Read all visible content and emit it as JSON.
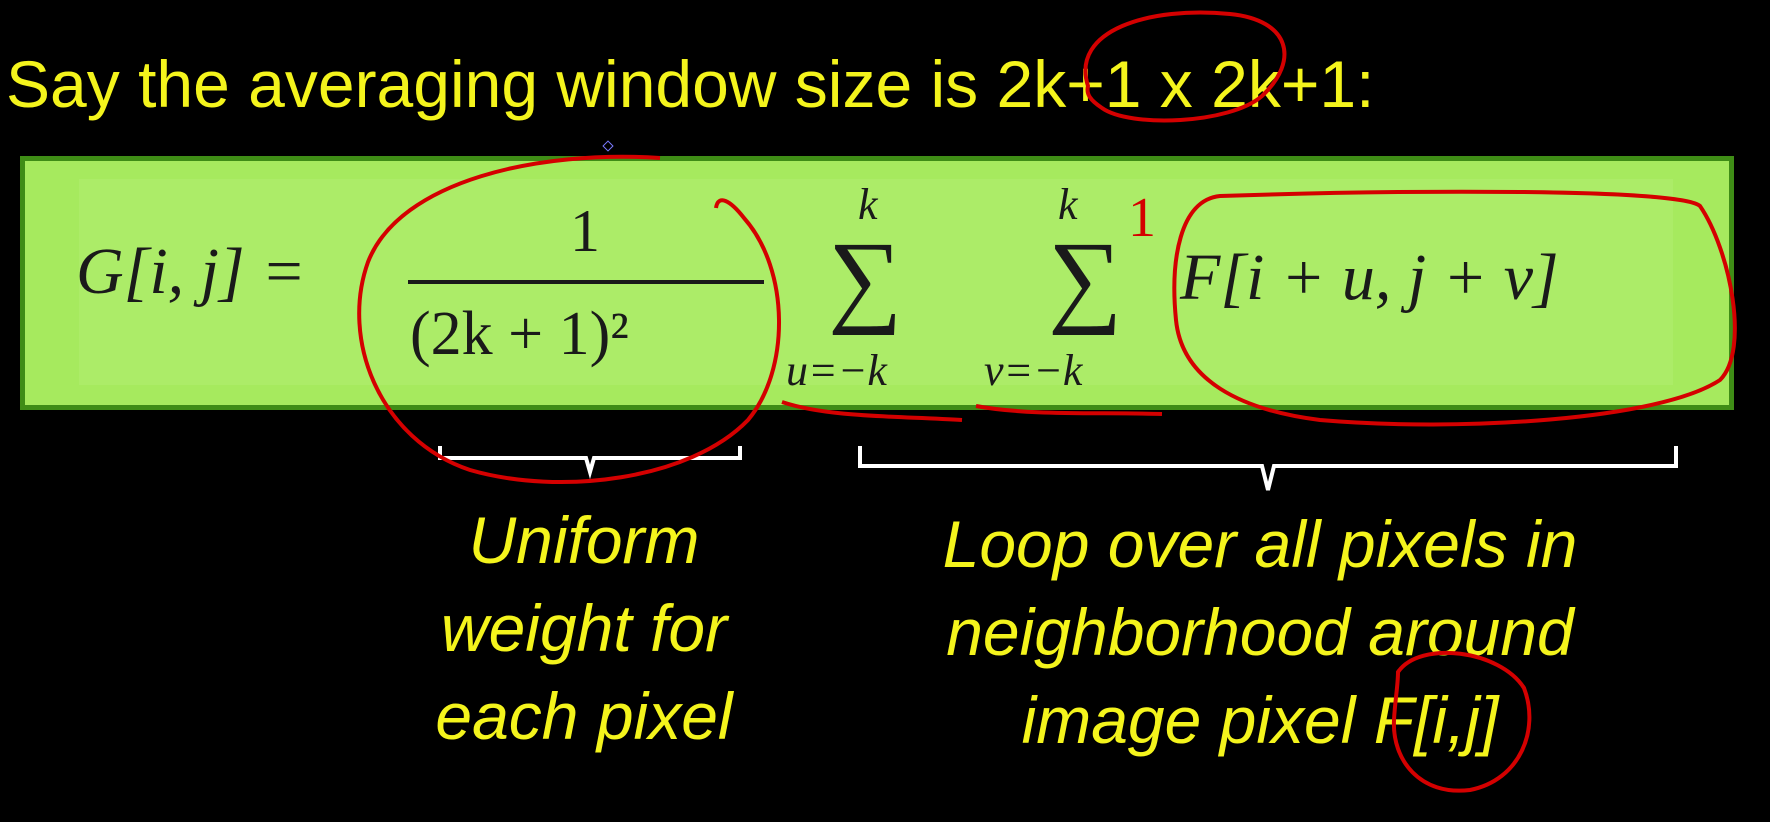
{
  "slide": {
    "heading": "Say the averaging window size is 2k+1 x 2k+1:",
    "equation": {
      "lhs": "G[i, j] =",
      "numerator": "1",
      "denominator": "(2k + 1)²",
      "sum1_upper": "k",
      "sum1_lower": "u=−k",
      "sum2_upper": "k",
      "sum2_lower": "v=−k",
      "sigma": "∑",
      "rhs": "F[i + u, j + v]"
    },
    "captions": {
      "left": [
        "Uniform",
        "weight for",
        "each pixel"
      ],
      "right": [
        "Loop over all pixels in",
        "neighborhood around",
        "image pixel F[i,j]"
      ]
    },
    "annotation_mark": "1",
    "colors": {
      "background": "#000000",
      "text": "#f4f41c",
      "panel": "#a6ea5e",
      "panel_border": "#3f8d16",
      "ink_annotation": "#d40000",
      "brace": "#ffffff"
    }
  }
}
